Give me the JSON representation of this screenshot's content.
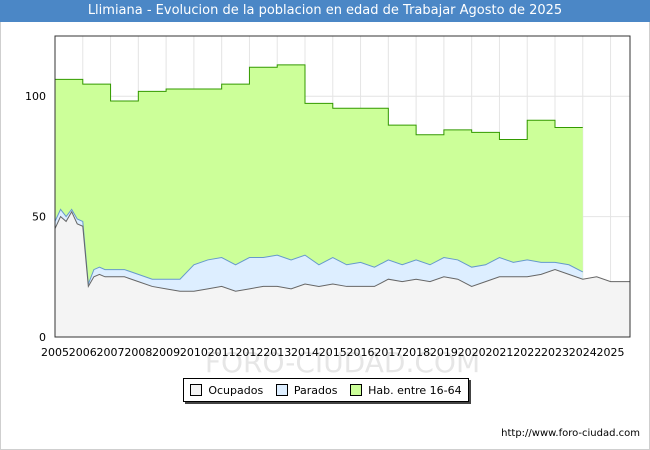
{
  "title": "Llimiana - Evolucion de la poblacion en edad de Trabajar Agosto de 2025",
  "source": "http://www.foro-ciudad.com",
  "watermark": "FORO-CIUDAD.COM",
  "chart_data": {
    "type": "area",
    "xlim": [
      2005,
      2025.7
    ],
    "ylim": [
      0,
      125
    ],
    "x_ticks": [
      2005,
      2006,
      2007,
      2008,
      2009,
      2010,
      2011,
      2012,
      2013,
      2014,
      2015,
      2016,
      2017,
      2018,
      2019,
      2020,
      2021,
      2022,
      2023,
      2024,
      2025
    ],
    "y_ticks": [
      0,
      50,
      100
    ],
    "grid": true,
    "legend_position": "bottom",
    "series": [
      {
        "name": "Hab. entre 16-64",
        "color": "#ccff99",
        "line": "#339900",
        "x": [
          2005,
          2006,
          2006,
          2007,
          2007,
          2008,
          2008,
          2009,
          2009,
          2010,
          2010,
          2011,
          2011,
          2012,
          2012,
          2013,
          2013,
          2014,
          2014,
          2015,
          2015,
          2016,
          2016,
          2017,
          2017,
          2018,
          2018,
          2019,
          2019,
          2020,
          2020,
          2021,
          2021,
          2022,
          2022,
          2023,
          2023,
          2024
        ],
        "values": [
          107,
          107,
          105,
          105,
          98,
          98,
          102,
          102,
          103,
          103,
          103,
          103,
          105,
          105,
          112,
          112,
          113,
          113,
          97,
          97,
          95,
          95,
          95,
          95,
          88,
          88,
          84,
          84,
          86,
          86,
          85,
          85,
          82,
          82,
          90,
          90,
          87,
          87
        ]
      },
      {
        "name": "Parados",
        "color": "#ddeeff",
        "line": "#6699cc",
        "x": [
          2005,
          2005.2,
          2005.4,
          2005.6,
          2005.8,
          2006,
          2006.2,
          2006.4,
          2006.6,
          2006.8,
          2007,
          2007.5,
          2008,
          2008.5,
          2009,
          2009.5,
          2010,
          2010.5,
          2011,
          2011.5,
          2012,
          2012.5,
          2013,
          2013.5,
          2014,
          2014.5,
          2015,
          2015.5,
          2016,
          2016.5,
          2017,
          2017.5,
          2018,
          2018.5,
          2019,
          2019.5,
          2020,
          2020.5,
          2021,
          2021.5,
          2022,
          2022.5,
          2023,
          2023.5,
          2024
        ],
        "values": [
          48,
          53,
          50,
          53,
          49,
          48,
          22,
          28,
          29,
          28,
          28,
          28,
          26,
          24,
          24,
          24,
          30,
          32,
          33,
          30,
          33,
          33,
          34,
          32,
          34,
          30,
          33,
          30,
          31,
          29,
          32,
          30,
          32,
          30,
          33,
          32,
          29,
          30,
          33,
          31,
          32,
          31,
          31,
          30,
          27
        ]
      },
      {
        "name": "Ocupados",
        "color": "#f4f4f4",
        "line": "#666666",
        "x": [
          2005,
          2005.2,
          2005.4,
          2005.6,
          2005.8,
          2006,
          2006.2,
          2006.4,
          2006.6,
          2006.8,
          2007,
          2007.5,
          2008,
          2008.5,
          2009,
          2009.5,
          2010,
          2010.5,
          2011,
          2011.5,
          2012,
          2012.5,
          2013,
          2013.5,
          2014,
          2014.5,
          2015,
          2015.5,
          2016,
          2016.5,
          2017,
          2017.5,
          2018,
          2018.5,
          2019,
          2019.5,
          2020,
          2020.5,
          2021,
          2021.5,
          2022,
          2022.5,
          2023,
          2023.5,
          2024,
          2024.5,
          2025,
          2025.7
        ],
        "values": [
          45,
          50,
          48,
          52,
          47,
          46,
          21,
          25,
          26,
          25,
          25,
          25,
          23,
          21,
          20,
          19,
          19,
          20,
          21,
          19,
          20,
          21,
          21,
          20,
          22,
          21,
          22,
          21,
          21,
          21,
          24,
          23,
          24,
          23,
          25,
          24,
          21,
          23,
          25,
          25,
          25,
          26,
          28,
          26,
          24,
          25,
          23,
          23
        ]
      }
    ]
  },
  "legend": {
    "ocupados": "Ocupados",
    "parados": "Parados",
    "hab": "Hab. entre 16-64"
  }
}
